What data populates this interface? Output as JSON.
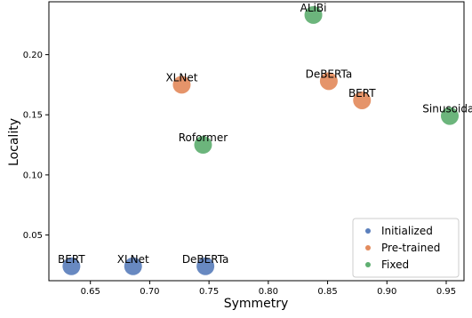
{
  "chart_data": {
    "type": "scatter",
    "xlabel": "Symmetry",
    "ylabel": "Locality",
    "xlim": [
      0.615,
      0.965
    ],
    "ylim": [
      0.012,
      0.244
    ],
    "xticks": [
      0.65,
      0.7,
      0.75,
      0.8,
      0.85,
      0.9,
      0.95
    ],
    "xtick_labels": [
      "0.65",
      "0.70",
      "0.75",
      "0.80",
      "0.85",
      "0.90",
      "0.95"
    ],
    "yticks": [
      0.05,
      0.1,
      0.15,
      0.2
    ],
    "ytick_labels": [
      "0.05",
      "0.10",
      "0.15",
      "0.20"
    ],
    "grid": false,
    "legend_position": "bottom-right",
    "series": [
      {
        "name": "Initialized",
        "color": "#5b7fbc",
        "points": [
          {
            "label": "BERT",
            "x": 0.634,
            "y": 0.024
          },
          {
            "label": "XLNet",
            "x": 0.686,
            "y": 0.024
          },
          {
            "label": "DeBERTa",
            "x": 0.747,
            "y": 0.024
          }
        ]
      },
      {
        "name": "Pre-trained",
        "color": "#e38b5d",
        "points": [
          {
            "label": "XLNet",
            "x": 0.727,
            "y": 0.175
          },
          {
            "label": "DeBERTa",
            "x": 0.851,
            "y": 0.178
          },
          {
            "label": "BERT",
            "x": 0.879,
            "y": 0.162
          }
        ]
      },
      {
        "name": "Fixed",
        "color": "#5faf71",
        "points": [
          {
            "label": "ALiBi",
            "x": 0.838,
            "y": 0.233
          },
          {
            "label": "Roformer",
            "x": 0.745,
            "y": 0.125
          },
          {
            "label": "Sinusoidal",
            "x": 0.953,
            "y": 0.149
          }
        ]
      }
    ]
  }
}
